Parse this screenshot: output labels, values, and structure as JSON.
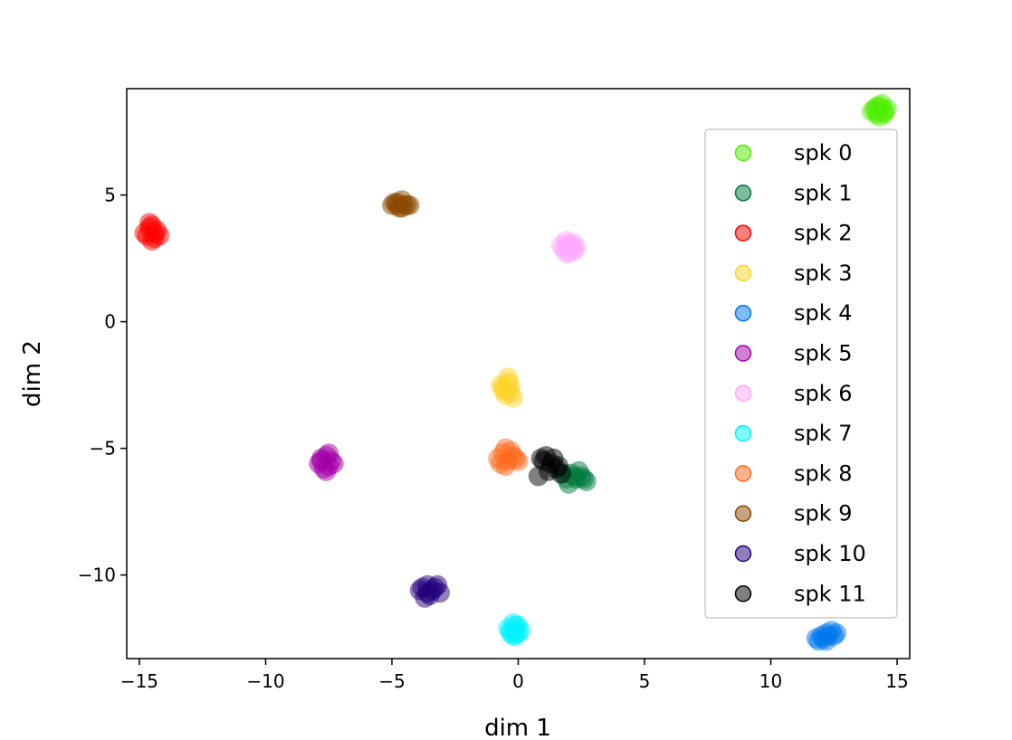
{
  "chart_data": {
    "type": "scatter",
    "title": "",
    "xlabel": "dim 1",
    "ylabel": "dim 2",
    "xlim": [
      -15.5,
      15.5
    ],
    "ylim": [
      -13.3,
      9.2
    ],
    "xticks": [
      -15,
      -10,
      -5,
      0,
      5,
      10,
      15
    ],
    "yticks": [
      -10,
      -5,
      0,
      5
    ],
    "grid": false,
    "legend_position": "right",
    "series": [
      {
        "name": "spk 0",
        "color": "#4cee00",
        "points": [
          [
            14.1,
            8.4
          ],
          [
            14.3,
            8.5
          ],
          [
            14.5,
            8.3
          ],
          [
            14.2,
            8.2
          ],
          [
            14.4,
            8.6
          ],
          [
            14.0,
            8.3
          ],
          [
            14.6,
            8.4
          ],
          [
            14.3,
            8.1
          ],
          [
            14.5,
            8.2
          ],
          [
            14.2,
            8.5
          ]
        ]
      },
      {
        "name": "spk 1",
        "color": "#007a3d",
        "points": [
          [
            1.9,
            -6.2
          ],
          [
            2.1,
            -6.0
          ],
          [
            2.3,
            -6.2
          ],
          [
            2.5,
            -6.1
          ],
          [
            2.7,
            -6.3
          ],
          [
            2.0,
            -6.4
          ],
          [
            2.4,
            -5.9
          ],
          [
            2.6,
            -6.2
          ],
          [
            2.2,
            -6.1
          ],
          [
            1.8,
            -6.0
          ]
        ]
      },
      {
        "name": "spk 2",
        "color": "#ff0000",
        "points": [
          [
            -14.6,
            3.7
          ],
          [
            -14.4,
            3.5
          ],
          [
            -14.7,
            3.4
          ],
          [
            -14.5,
            3.2
          ],
          [
            -14.3,
            3.6
          ],
          [
            -14.6,
            3.9
          ],
          [
            -14.2,
            3.4
          ],
          [
            -14.8,
            3.5
          ],
          [
            -14.5,
            3.8
          ],
          [
            -14.4,
            3.3
          ]
        ]
      },
      {
        "name": "spk 3",
        "color": "#ffd32a",
        "points": [
          [
            -0.6,
            -2.6
          ],
          [
            -0.4,
            -2.4
          ],
          [
            -0.3,
            -2.8
          ],
          [
            -0.5,
            -2.9
          ],
          [
            -0.7,
            -2.5
          ],
          [
            -0.2,
            -3.0
          ],
          [
            -0.4,
            -2.2
          ],
          [
            -0.6,
            -2.7
          ],
          [
            -0.3,
            -2.5
          ],
          [
            -0.5,
            -2.7
          ]
        ]
      },
      {
        "name": "spk 4",
        "color": "#0077ee",
        "points": [
          [
            11.8,
            -12.5
          ],
          [
            12.0,
            -12.4
          ],
          [
            12.2,
            -12.3
          ],
          [
            12.4,
            -12.2
          ],
          [
            12.6,
            -12.3
          ],
          [
            12.1,
            -12.5
          ],
          [
            12.3,
            -12.4
          ],
          [
            11.9,
            -12.6
          ],
          [
            12.5,
            -12.4
          ],
          [
            12.2,
            -12.6
          ]
        ]
      },
      {
        "name": "spk 5",
        "color": "#a100a8",
        "points": [
          [
            -7.8,
            -5.5
          ],
          [
            -7.6,
            -5.3
          ],
          [
            -7.5,
            -5.7
          ],
          [
            -7.7,
            -5.8
          ],
          [
            -7.4,
            -5.5
          ],
          [
            -7.9,
            -5.6
          ],
          [
            -7.6,
            -5.9
          ],
          [
            -7.5,
            -5.2
          ],
          [
            -7.8,
            -5.4
          ],
          [
            -7.3,
            -5.6
          ]
        ]
      },
      {
        "name": "spk 6",
        "color": "#ffa8ff",
        "points": [
          [
            1.8,
            2.9
          ],
          [
            2.0,
            3.1
          ],
          [
            2.2,
            2.8
          ],
          [
            1.9,
            2.7
          ],
          [
            2.1,
            3.0
          ],
          [
            1.7,
            3.0
          ],
          [
            2.3,
            2.9
          ],
          [
            2.0,
            2.7
          ],
          [
            1.9,
            3.2
          ],
          [
            2.2,
            3.1
          ]
        ]
      },
      {
        "name": "spk 7",
        "color": "#00f2ff",
        "points": [
          [
            -0.3,
            -12.2
          ],
          [
            -0.1,
            -12.0
          ],
          [
            0.0,
            -12.3
          ],
          [
            -0.2,
            -12.4
          ],
          [
            -0.4,
            -12.1
          ],
          [
            0.1,
            -12.2
          ],
          [
            -0.2,
            -11.9
          ],
          [
            -0.1,
            -12.4
          ],
          [
            -0.3,
            -12.3
          ],
          [
            0.0,
            -12.0
          ]
        ]
      },
      {
        "name": "spk 8",
        "color": "#ff6a1c",
        "points": [
          [
            -0.8,
            -5.4
          ],
          [
            -0.6,
            -5.2
          ],
          [
            -0.4,
            -5.5
          ],
          [
            -0.2,
            -5.3
          ],
          [
            0.0,
            -5.5
          ],
          [
            -0.5,
            -5.7
          ],
          [
            -0.7,
            -5.6
          ],
          [
            -0.3,
            -5.1
          ],
          [
            -0.5,
            -5.0
          ],
          [
            -0.1,
            -5.4
          ]
        ]
      },
      {
        "name": "spk 9",
        "color": "#8a4a00",
        "points": [
          [
            -5.0,
            4.6
          ],
          [
            -4.8,
            4.7
          ],
          [
            -4.6,
            4.8
          ],
          [
            -4.4,
            4.6
          ],
          [
            -4.7,
            4.5
          ],
          [
            -4.5,
            4.6
          ],
          [
            -4.9,
            4.7
          ],
          [
            -4.6,
            4.5
          ],
          [
            -4.3,
            4.6
          ],
          [
            -4.8,
            4.6
          ]
        ]
      },
      {
        "name": "spk 10",
        "color": "#22007a",
        "points": [
          [
            -3.8,
            -10.5
          ],
          [
            -3.6,
            -10.4
          ],
          [
            -3.4,
            -10.6
          ],
          [
            -3.2,
            -10.4
          ],
          [
            -3.1,
            -10.7
          ],
          [
            -3.5,
            -10.8
          ],
          [
            -3.7,
            -10.9
          ],
          [
            -3.3,
            -10.5
          ],
          [
            -3.9,
            -10.6
          ],
          [
            -3.6,
            -10.7
          ]
        ]
      },
      {
        "name": "spk 11",
        "color": "#000000",
        "points": [
          [
            0.9,
            -5.4
          ],
          [
            1.1,
            -5.3
          ],
          [
            1.3,
            -5.6
          ],
          [
            1.5,
            -5.8
          ],
          [
            1.7,
            -6.0
          ],
          [
            1.2,
            -5.9
          ],
          [
            1.4,
            -5.4
          ],
          [
            1.6,
            -5.7
          ],
          [
            0.8,
            -6.1
          ],
          [
            1.0,
            -5.5
          ]
        ]
      }
    ]
  }
}
